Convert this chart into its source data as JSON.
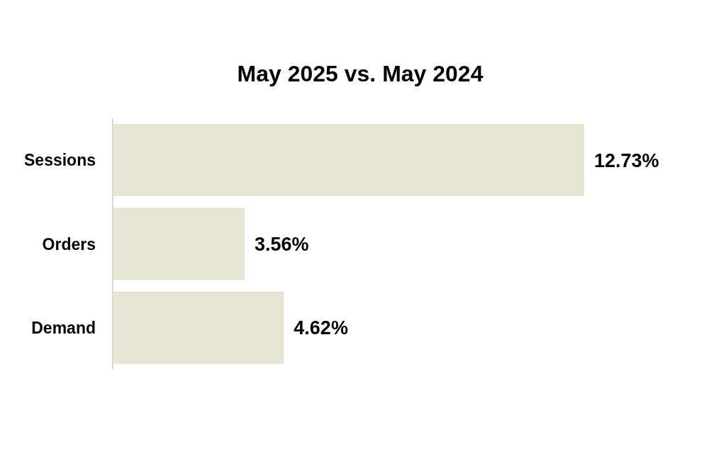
{
  "chart_data": {
    "type": "bar",
    "orientation": "horizontal",
    "title": "May 2025 vs. May 2024",
    "categories": [
      "Sessions",
      "Orders",
      "Demand"
    ],
    "values": [
      12.73,
      3.56,
      4.62
    ],
    "value_labels": [
      "12.73%",
      "3.56%",
      "4.62%"
    ],
    "color": "#e6e4d3"
  }
}
